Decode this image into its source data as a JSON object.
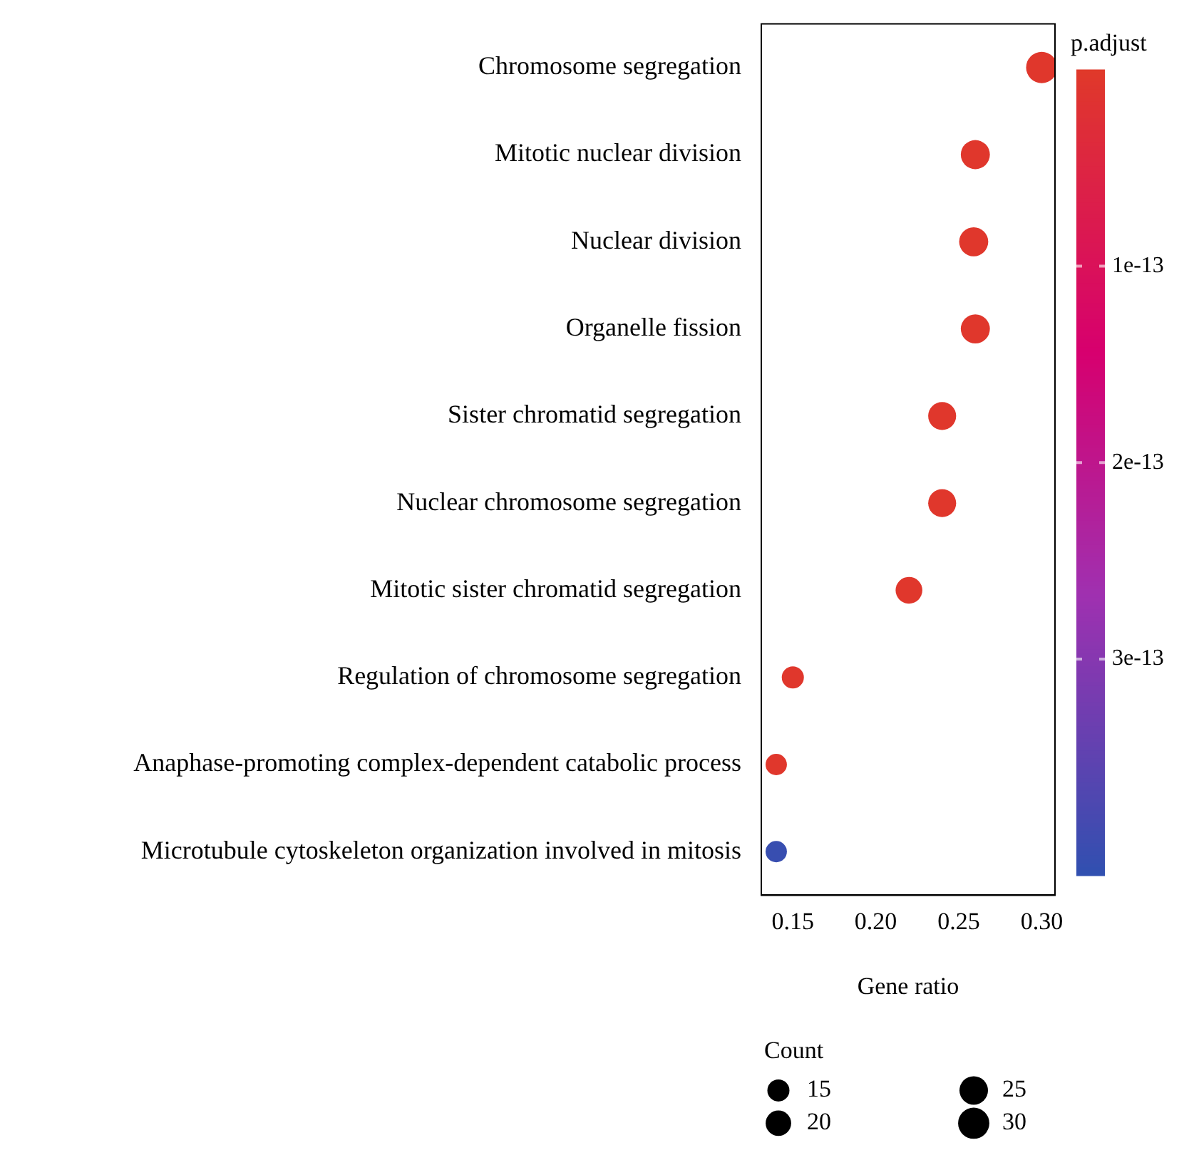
{
  "chart_data": {
    "type": "bubble",
    "orientation": "horizontal",
    "categories": [
      "Chromosome segregation",
      "Mitotic nuclear division",
      "Nuclear division",
      "Organelle fission",
      "Sister chromatid segregation",
      "Nuclear chromosome segregation",
      "Mitotic sister chromatid segregation",
      "Regulation of chromosome segregation",
      "Anaphase-promoting complex-dependent catabolic process",
      "Microtubule cytoskeleton organization involved in mitosis"
    ],
    "values": [
      0.3,
      0.26,
      0.259,
      0.26,
      0.24,
      0.24,
      0.22,
      0.15,
      0.14,
      0.14
    ],
    "sizes": [
      30,
      26,
      26,
      26,
      24,
      24,
      22,
      15,
      14,
      14
    ],
    "size_legend": [
      15,
      20,
      25,
      30
    ],
    "cvalues": [
      5e-15,
      5e-15,
      5e-15,
      5e-15,
      5e-15,
      5e-15,
      5e-15,
      5e-15,
      5e-15,
      4e-13
    ],
    "clim": [
      4.1e-13,
      0
    ],
    "cticks": [
      {
        "value": 1e-13,
        "label": "1e-13"
      },
      {
        "value": 2e-13,
        "label": "2e-13"
      },
      {
        "value": 3e-13,
        "label": "3e-13"
      }
    ],
    "clabel": "p.adjust",
    "legend_title": "Count",
    "xlabel": "Gene ratio",
    "xlim": [
      0.131,
      0.308
    ],
    "xticks": [
      {
        "value": 0.15,
        "label": "0.15"
      },
      {
        "value": 0.2,
        "label": "0.20"
      },
      {
        "value": 0.25,
        "label": "0.25"
      },
      {
        "value": 0.3,
        "label": "0.30"
      }
    ],
    "grid": false
  }
}
